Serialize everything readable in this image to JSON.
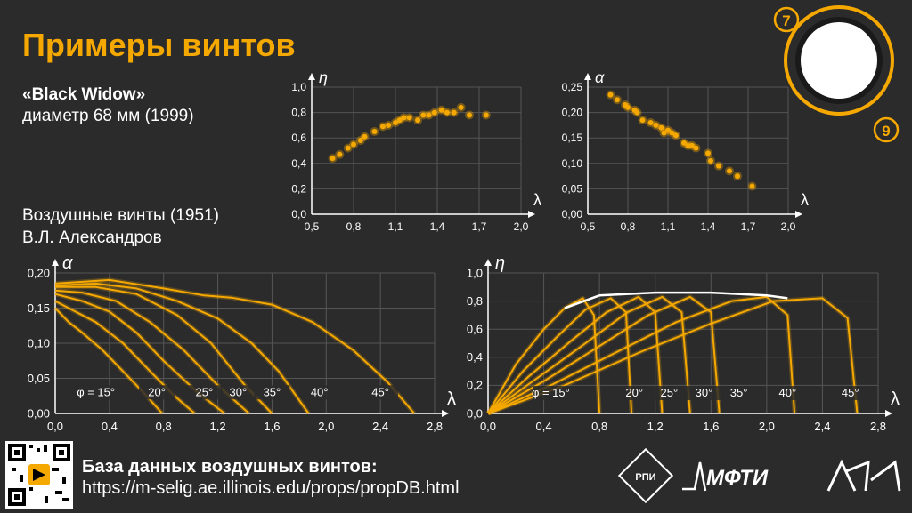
{
  "slide": {
    "title": "Примеры винтов",
    "subtitle_name": "«Black  Widow»",
    "subtitle_desc": "диаметр 68 мм (1999)",
    "source_title": "Воздушные винты (1951)",
    "source_author": "В.Л. Александров",
    "db_title": "База данных воздушных винтов:",
    "db_url": "https://m-selig.ae.illinois.edu/props/propDB.html",
    "page_numbers": [
      "7",
      "9"
    ],
    "logos": [
      "РПИ",
      "МФТИ",
      "СКАТ"
    ],
    "colors": {
      "accent": "#f5a800",
      "background": "#2b2b2b",
      "text": "#ffffff"
    }
  },
  "chart_data": [
    {
      "type": "scatter",
      "xlabel": "λ",
      "ylabel": "η",
      "xlim": [
        0.5,
        2.0
      ],
      "ylim": [
        0.0,
        1.0
      ],
      "xticks": [
        "0,5",
        "0,8",
        "1,1",
        "1,4",
        "1,7",
        "2,0"
      ],
      "yticks": [
        "0,0",
        "0,2",
        "0,4",
        "0,6",
        "0,8",
        "1,0"
      ],
      "grid": true,
      "x": [
        0.65,
        0.7,
        0.76,
        0.8,
        0.85,
        0.88,
        0.95,
        1.01,
        1.05,
        1.1,
        1.13,
        1.16,
        1.2,
        1.26,
        1.3,
        1.34,
        1.38,
        1.43,
        1.47,
        1.52,
        1.57,
        1.63,
        1.75
      ],
      "y": [
        0.44,
        0.47,
        0.52,
        0.55,
        0.58,
        0.61,
        0.65,
        0.69,
        0.7,
        0.72,
        0.74,
        0.76,
        0.76,
        0.74,
        0.78,
        0.78,
        0.8,
        0.82,
        0.8,
        0.8,
        0.84,
        0.78,
        0.78
      ]
    },
    {
      "type": "scatter",
      "xlabel": "λ",
      "ylabel": "α",
      "xlim": [
        0.5,
        2.0
      ],
      "ylim": [
        0.0,
        0.25
      ],
      "xticks": [
        "0,5",
        "0,8",
        "1,1",
        "1,4",
        "1,7",
        "2,0"
      ],
      "yticks": [
        "0,00",
        "0,05",
        "0,10",
        "0,15",
        "0,20",
        "0,25"
      ],
      "grid": true,
      "x": [
        0.67,
        0.72,
        0.78,
        0.8,
        0.85,
        0.87,
        0.91,
        0.97,
        1.01,
        1.05,
        1.07,
        1.1,
        1.13,
        1.16,
        1.22,
        1.25,
        1.28,
        1.31,
        1.4,
        1.42,
        1.48,
        1.56,
        1.62,
        1.73
      ],
      "y": [
        0.235,
        0.225,
        0.215,
        0.21,
        0.205,
        0.2,
        0.185,
        0.18,
        0.175,
        0.17,
        0.16,
        0.165,
        0.16,
        0.155,
        0.14,
        0.135,
        0.135,
        0.13,
        0.12,
        0.105,
        0.095,
        0.085,
        0.075,
        0.055
      ]
    },
    {
      "type": "line",
      "xlabel": "λ",
      "ylabel": "α",
      "xlim": [
        0.0,
        2.8
      ],
      "ylim": [
        0.0,
        0.2
      ],
      "xticks": [
        "0,0",
        "0,4",
        "0,8",
        "1,2",
        "1,6",
        "2,0",
        "2,4",
        "2,8"
      ],
      "yticks": [
        "0,00",
        "0,05",
        "0,10",
        "0,15",
        "0,20"
      ],
      "grid": true,
      "annotations": [
        "φ = 15°",
        "20°",
        "25°",
        "30°",
        "35°",
        "40°",
        "45°"
      ],
      "series": [
        {
          "x": [
            0.0,
            0.1,
            0.2,
            0.35,
            0.5,
            0.65,
            0.79
          ],
          "y": [
            0.15,
            0.13,
            0.115,
            0.09,
            0.06,
            0.03,
            0.0
          ]
        },
        {
          "x": [
            0.0,
            0.15,
            0.3,
            0.5,
            0.7,
            0.88,
            1.03
          ],
          "y": [
            0.16,
            0.145,
            0.13,
            0.1,
            0.06,
            0.025,
            0.0
          ]
        },
        {
          "x": [
            0.0,
            0.2,
            0.4,
            0.6,
            0.8,
            1.05,
            1.25
          ],
          "y": [
            0.17,
            0.16,
            0.145,
            0.115,
            0.075,
            0.03,
            0.0
          ]
        },
        {
          "x": [
            0.0,
            0.2,
            0.45,
            0.7,
            0.95,
            1.2,
            1.43
          ],
          "y": [
            0.175,
            0.172,
            0.16,
            0.13,
            0.09,
            0.04,
            0.0
          ]
        },
        {
          "x": [
            0.0,
            0.3,
            0.6,
            0.9,
            1.15,
            1.4,
            1.6
          ],
          "y": [
            0.18,
            0.18,
            0.17,
            0.14,
            0.1,
            0.04,
            0.0
          ]
        },
        {
          "x": [
            0.0,
            0.3,
            0.6,
            0.9,
            1.2,
            1.45,
            1.65,
            1.87
          ],
          "y": [
            0.182,
            0.185,
            0.178,
            0.16,
            0.135,
            0.1,
            0.06,
            0.0
          ]
        },
        {
          "x": [
            0.0,
            0.4,
            0.8,
            1.1,
            1.3,
            1.6,
            1.9,
            2.2,
            2.45,
            2.65
          ],
          "y": [
            0.185,
            0.19,
            0.178,
            0.168,
            0.165,
            0.155,
            0.13,
            0.09,
            0.045,
            0.0
          ]
        }
      ]
    },
    {
      "type": "line",
      "xlabel": "λ",
      "ylabel": "η",
      "xlim": [
        0.0,
        2.8
      ],
      "ylim": [
        0.0,
        1.0
      ],
      "xticks": [
        "0,0",
        "0,4",
        "0,8",
        "1,2",
        "1,6",
        "2,0",
        "2,4",
        "2,8"
      ],
      "yticks": [
        "0,0",
        "0,2",
        "0,4",
        "0,6",
        "0,8",
        "1,0"
      ],
      "grid": true,
      "annotations": [
        "φ = 15°",
        "20°",
        "25°",
        "30°",
        "35°",
        "40°",
        "45°"
      ],
      "series": [
        {
          "x": [
            0.0,
            0.2,
            0.4,
            0.55,
            0.68,
            0.76,
            0.8
          ],
          "y": [
            0.0,
            0.35,
            0.6,
            0.75,
            0.82,
            0.7,
            0.0
          ]
        },
        {
          "x": [
            0.0,
            0.25,
            0.5,
            0.7,
            0.88,
            0.99,
            1.03
          ],
          "y": [
            0.0,
            0.3,
            0.55,
            0.74,
            0.82,
            0.72,
            0.0
          ]
        },
        {
          "x": [
            0.0,
            0.3,
            0.6,
            0.85,
            1.08,
            1.2,
            1.25
          ],
          "y": [
            0.0,
            0.27,
            0.52,
            0.72,
            0.83,
            0.72,
            0.0
          ]
        },
        {
          "x": [
            0.0,
            0.35,
            0.7,
            1.0,
            1.25,
            1.39,
            1.45
          ],
          "y": [
            0.0,
            0.25,
            0.5,
            0.72,
            0.83,
            0.72,
            0.0
          ]
        },
        {
          "x": [
            0.0,
            0.4,
            0.8,
            1.15,
            1.45,
            1.6,
            1.66
          ],
          "y": [
            0.0,
            0.23,
            0.48,
            0.7,
            0.83,
            0.72,
            0.0
          ]
        },
        {
          "x": [
            0.0,
            0.45,
            0.95,
            1.35,
            1.75,
            2.0,
            2.15,
            2.2
          ],
          "y": [
            0.0,
            0.2,
            0.45,
            0.65,
            0.8,
            0.83,
            0.7,
            0.0
          ]
        },
        {
          "x": [
            0.0,
            0.55,
            1.1,
            1.6,
            2.05,
            2.4,
            2.58,
            2.65
          ],
          "y": [
            0.0,
            0.2,
            0.44,
            0.64,
            0.8,
            0.82,
            0.68,
            0.0
          ]
        }
      ],
      "envelope": {
        "x": [
          0.55,
          0.8,
          1.2,
          1.6,
          2.0,
          2.15
        ],
        "y": [
          0.75,
          0.84,
          0.86,
          0.86,
          0.84,
          0.82
        ]
      }
    }
  ]
}
